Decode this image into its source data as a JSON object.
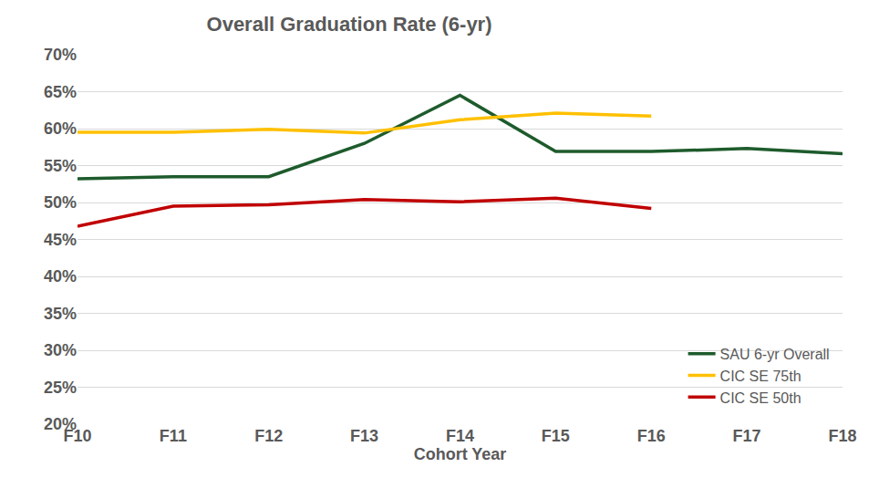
{
  "chart_data": {
    "type": "line",
    "title": "Overall Graduation Rate (6-yr)",
    "x_label": "Cohort Year",
    "categories": [
      "F10",
      "F11",
      "F12",
      "F13",
      "F14",
      "F15",
      "F16",
      "F17",
      "F18"
    ],
    "series": [
      {
        "name": "SAU 6-yr Overall",
        "color": "#1e5b2c",
        "values": [
          53.2,
          53.5,
          53.5,
          58.0,
          64.5,
          56.9,
          56.9,
          57.3,
          56.6
        ]
      },
      {
        "name": "CIC SE 75th",
        "color": "#ffc000",
        "values": [
          59.5,
          59.5,
          59.9,
          59.4,
          61.2,
          62.1,
          61.7,
          null,
          null
        ]
      },
      {
        "name": "CIC SE 50th",
        "color": "#c00000",
        "values": [
          46.8,
          49.5,
          49.7,
          50.4,
          50.1,
          50.6,
          49.2,
          null,
          null
        ]
      }
    ],
    "ylim": [
      20,
      70
    ],
    "yticks": [
      {
        "value": 20,
        "label": "20%"
      },
      {
        "value": 25,
        "label": "25%"
      },
      {
        "value": 30,
        "label": "30%"
      },
      {
        "value": 35,
        "label": "35%"
      },
      {
        "value": 40,
        "label": "40%"
      },
      {
        "value": 45,
        "label": "45%"
      },
      {
        "value": 50,
        "label": "50%"
      },
      {
        "value": 55,
        "label": "55%"
      },
      {
        "value": 60,
        "label": "60%"
      },
      {
        "value": 65,
        "label": "65%"
      },
      {
        "value": 70,
        "label": "70%"
      }
    ],
    "grid": true,
    "legend": "lower right"
  }
}
